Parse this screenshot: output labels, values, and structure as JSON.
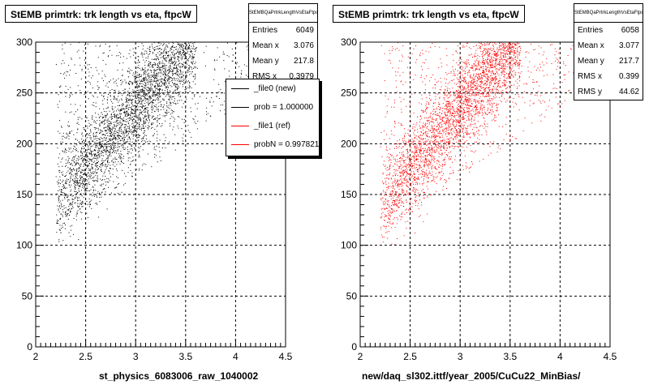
{
  "panels": [
    {
      "title": "StEMB primtrk: trk length vs eta, ftpcW",
      "stats_header": "StEMBQaPrtrkLengthVsEtaFtpcW",
      "stats": [
        {
          "label": "Entries",
          "value": "6049"
        },
        {
          "label": "Mean x",
          "value": "3.076"
        },
        {
          "label": "Mean y",
          "value": "217.8"
        },
        {
          "label": "RMS x",
          "value": "0.3979"
        }
      ],
      "xtitle": "st_physics_6083006_raw_1040002",
      "color": "#000000"
    },
    {
      "title": "StEMB primtrk: trk length vs eta, ftpcW",
      "stats_header": "StEMBQaPrtrkLengthVsEtaFtpcW",
      "stats": [
        {
          "label": "Entries",
          "value": "6058"
        },
        {
          "label": "Mean x",
          "value": "3.077"
        },
        {
          "label": "Mean y",
          "value": "217.7"
        },
        {
          "label": "RMS x",
          "value": "0.399"
        },
        {
          "label": "RMS y",
          "value": "44.62"
        }
      ],
      "xtitle": "new/daq_sl302.ittf/year_2005/CuCu22_MinBias/",
      "color": "#ff0000"
    }
  ],
  "legend": [
    {
      "label": "_file0 (new)",
      "color": "#000000"
    },
    {
      "label": "prob = 1.000000",
      "color": "#000000"
    },
    {
      "label": "_file1 (ref)",
      "color": "#ff0000"
    },
    {
      "label": "probN = 0.997821",
      "color": "#ff0000"
    }
  ],
  "chart_data": [
    {
      "type": "scatter",
      "title": "StEMB primtrk: trk length vs eta, ftpcW",
      "xlabel": "st_physics_6083006_raw_1040002",
      "ylabel": "",
      "xlim": [
        2,
        4.5
      ],
      "ylim": [
        0,
        300
      ],
      "xticks": [
        2,
        2.5,
        3,
        3.5,
        4,
        4.5
      ],
      "yticks": [
        0,
        50,
        100,
        150,
        200,
        250,
        300
      ],
      "grid": true,
      "series": [
        {
          "color": "#000000",
          "entries": 6049,
          "mean_x": 3.076,
          "mean_y": 217.8,
          "rms_x": 0.3979
        }
      ]
    },
    {
      "type": "scatter",
      "title": "StEMB primtrk: trk length vs eta, ftpcW",
      "xlabel": "new/daq_sl302.ittf/year_2005/CuCu22_MinBias/",
      "ylabel": "",
      "xlim": [
        2,
        4.5
      ],
      "ylim": [
        0,
        300
      ],
      "xticks": [
        2,
        2.5,
        3,
        3.5,
        4,
        4.5
      ],
      "yticks": [
        0,
        50,
        100,
        150,
        200,
        250,
        300
      ],
      "grid": true,
      "series": [
        {
          "color": "#ff0000",
          "entries": 6058,
          "mean_x": 3.077,
          "mean_y": 217.7,
          "rms_x": 0.399,
          "rms_y": 44.62
        }
      ]
    }
  ]
}
